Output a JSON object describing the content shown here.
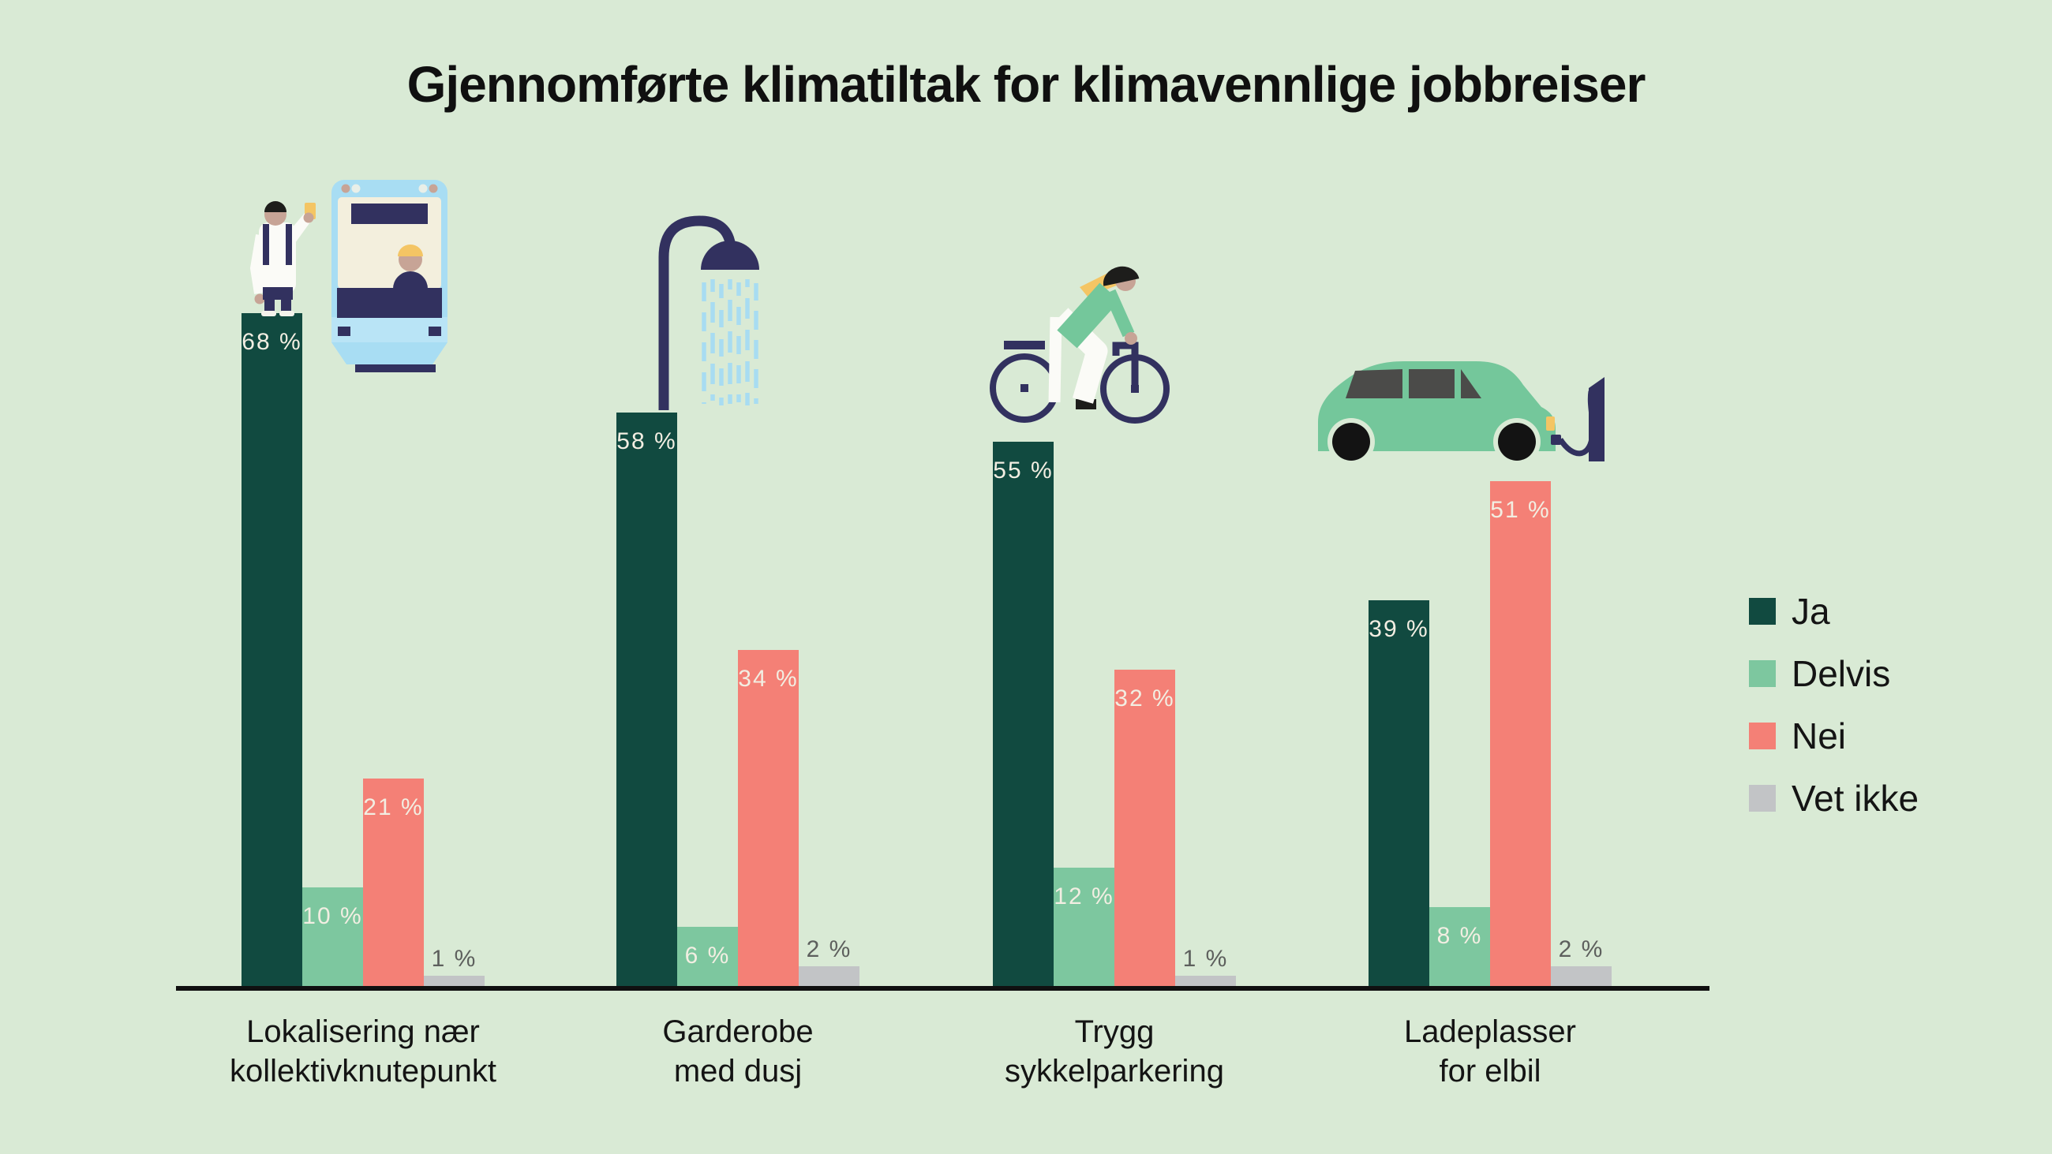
{
  "title": "Gjennomførte klimatiltak for klimavennlige jobbreiser",
  "legend": {
    "items": [
      {
        "label": "Ja",
        "color": "#114a40"
      },
      {
        "label": "Delvis",
        "color": "#7dc79f"
      },
      {
        "label": "Nei",
        "color": "#f48076"
      },
      {
        "label": "Vet ikke",
        "color": "#c2c4c6"
      }
    ]
  },
  "chart_data": {
    "type": "bar",
    "title": "Gjennomførte klimatiltak for klimavennlige jobbreiser",
    "categories": [
      "Lokalisering nær\nkollektivknutepunkt",
      "Garderobe\nmed dusj",
      "Trygg\nsykkelparkering",
      "Ladeplasser\nfor elbil"
    ],
    "series": [
      {
        "name": "Ja",
        "color": "#114a40",
        "values": [
          68,
          58,
          55,
          39
        ]
      },
      {
        "name": "Delvis",
        "color": "#7dc79f",
        "values": [
          10,
          6,
          12,
          8
        ]
      },
      {
        "name": "Nei",
        "color": "#f48076",
        "values": [
          21,
          34,
          32,
          51
        ]
      },
      {
        "name": "Vet ikke",
        "color": "#c2c4c6",
        "values": [
          1,
          2,
          1,
          2
        ]
      }
    ],
    "unit": "%",
    "value_label_format": "{value} %",
    "ylim": [
      0,
      100
    ],
    "grid": false,
    "legend_position": "right",
    "icons": [
      "person-waiting-with-tram",
      "shower-head",
      "cyclist",
      "electric-car-charging"
    ]
  },
  "colors": {
    "background": "#d9ead5",
    "axis": "#101010",
    "title_text": "#101010",
    "category_text": "#141414",
    "value_label_inside": "#f2eee2",
    "value_label_outside": "#5d5f5d",
    "icon_navy": "#32315f",
    "icon_tram_blue": "#a8ddf3",
    "icon_tram_blue_light": "#b9e4f6",
    "icon_cream": "#f3efdd",
    "icon_yellow": "#f4c564",
    "icon_skin": "#c7a496",
    "icon_mint": "#74c79b",
    "icon_white": "#fbfbf7",
    "icon_window_gray": "#4b4b49",
    "icon_black": "#1d1d1b",
    "icon_water_blue": "#a8dcf2"
  }
}
